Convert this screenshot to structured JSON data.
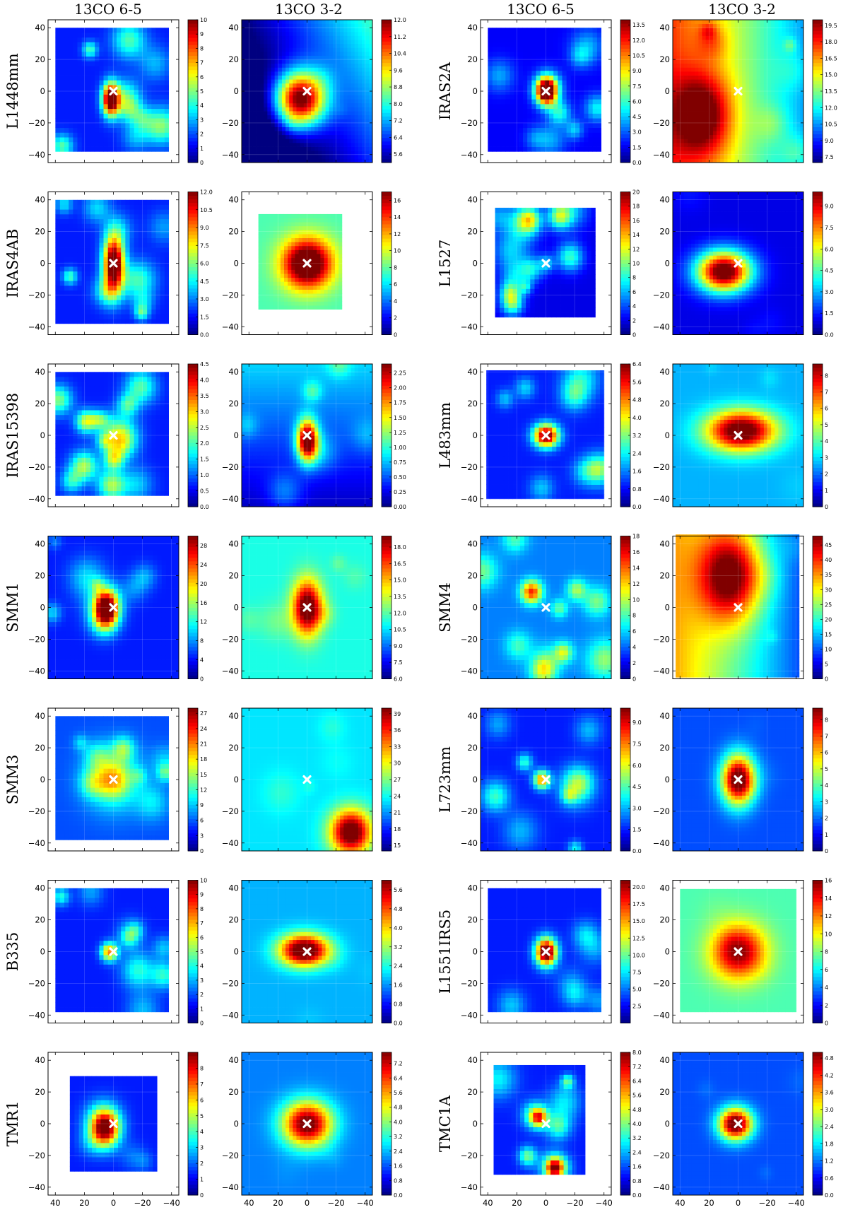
{
  "column_titles": [
    "13CO 6-5",
    "13CO 3-2",
    "13CO 6-5",
    "13CO 3-2"
  ],
  "axis_ticks": [
    "40",
    "20",
    "0",
    "−20",
    "−40"
  ],
  "chart_data": {
    "type": "heatmap",
    "colormap": "jet",
    "marker": "white x at offset (0,0)",
    "grid": true,
    "xlim": [
      45,
      -45
    ],
    "ylim": [
      -45,
      45
    ],
    "xticks": [
      40,
      20,
      0,
      -20,
      -40
    ],
    "yticks": [
      -40,
      -20,
      0,
      20,
      40
    ],
    "panels": [
      {
        "source": "L1448mm",
        "line": "13CO 6-5",
        "ext": [
          38,
          -38,
          -38,
          38
        ],
        "peak": [
          2,
          -5
        ],
        "s": [
          4,
          7
        ],
        "amp": 1.0,
        "bg": 0.15,
        "noise": 0.6,
        "seed": 11,
        "scale": [
          0,
          10
        ],
        "cb": [
          "0",
          "1",
          "2",
          "3",
          "4",
          "5",
          "6",
          "7",
          "8",
          "9",
          "10"
        ]
      },
      {
        "source": "L1448mm",
        "line": "13CO 3-2",
        "ext": [
          45,
          -45,
          -45,
          45
        ],
        "peak": [
          5,
          -5
        ],
        "s": [
          12,
          12
        ],
        "amp": 1.0,
        "bg": 0.08,
        "trend": [
          -0.005,
          0.003
        ],
        "noise": 0.1,
        "seed": 12,
        "scale": [
          5.2,
          12
        ],
        "cb": [
          "5.6",
          "6.4",
          "7.2",
          "8.0",
          "8.8",
          "9.6",
          "10.4",
          "11.2",
          "12.0"
        ]
      },
      {
        "source": "IRAS2A",
        "line": "13CO 6-5",
        "ext": [
          38,
          -38,
          -38,
          38
        ],
        "peak": [
          0,
          0
        ],
        "s": [
          5,
          6
        ],
        "amp": 1.0,
        "bg": 0.12,
        "noise": 0.5,
        "seed": 21,
        "scale": [
          0,
          14
        ],
        "cb": [
          "0.0",
          "1.5",
          "3.0",
          "4.5",
          "6.0",
          "7.5",
          "9.0",
          "10.5",
          "12.0",
          "13.5"
        ]
      },
      {
        "source": "IRAS2A",
        "line": "13CO 3-2",
        "ext": [
          45,
          -45,
          -45,
          45
        ],
        "peak": [
          25,
          -15
        ],
        "s": [
          14,
          18
        ],
        "amp": 0.45,
        "bg": 0.55,
        "trend": [
          0.006,
          0.0
        ],
        "noise": 0.25,
        "seed": 22,
        "scale": [
          7,
          20
        ],
        "cb": [
          "7.5",
          "9.0",
          "10.5",
          "12.0",
          "13.5",
          "15.0",
          "16.5",
          "18.0",
          "19.5"
        ]
      },
      {
        "source": "IRAS4AB",
        "line": "13CO 6-5",
        "ext": [
          38,
          -38,
          -38,
          38
        ],
        "peak": [
          0,
          0
        ],
        "s": [
          5,
          12
        ],
        "amp": 1.0,
        "bg": 0.15,
        "noise": 0.5,
        "seed": 31,
        "scale": [
          0,
          12
        ],
        "cb": [
          "0.0",
          "1.5",
          "3.0",
          "4.5",
          "6.0",
          "7.5",
          "9.0",
          "10.5",
          "12.0"
        ]
      },
      {
        "source": "IRAS4AB",
        "line": "13CO 3-2",
        "ext": [
          33,
          -24,
          -29,
          31
        ],
        "peak": [
          0,
          0
        ],
        "s": [
          12,
          11
        ],
        "amp": 0.75,
        "bg": 0.45,
        "noise": 0.0,
        "seed": 32,
        "scale": [
          0,
          17
        ],
        "cb": [
          "0",
          "2",
          "4",
          "6",
          "8",
          "10",
          "12",
          "14",
          "16"
        ]
      },
      {
        "source": "L1527",
        "line": "13CO 6-5",
        "ext": [
          34,
          -34,
          -34,
          34
        ],
        "peak": [
          0,
          0
        ],
        "s": [
          4,
          4
        ],
        "amp": 0.2,
        "bg": 0.1,
        "noise": 0.7,
        "seed": 41,
        "scale": [
          0,
          20
        ],
        "cb": [
          "0",
          "2",
          "4",
          "6",
          "8",
          "10",
          "12",
          "14",
          "16",
          "18",
          "20"
        ]
      },
      {
        "source": "L1527",
        "line": "13CO 3-2",
        "ext": [
          45,
          -45,
          -45,
          45
        ],
        "peak": [
          10,
          -5
        ],
        "s": [
          13,
          9
        ],
        "amp": 1.0,
        "bg": 0.1,
        "noise": 0.1,
        "seed": 42,
        "scale": [
          0,
          10
        ],
        "cb": [
          "0.0",
          "1.5",
          "3.0",
          "4.5",
          "6.0",
          "7.5",
          "9.0"
        ]
      },
      {
        "source": "IRAS15398",
        "line": "13CO 6-5",
        "ext": [
          38,
          -38,
          -38,
          38
        ],
        "peak": [
          10,
          10
        ],
        "s": [
          5,
          4
        ],
        "amp": 0.3,
        "bg": 0.15,
        "noise": 0.7,
        "seed": 51,
        "scale": [
          0,
          4.5
        ],
        "cb": [
          "0.0",
          "0.5",
          "1.0",
          "1.5",
          "2.0",
          "2.5",
          "3.0",
          "3.5",
          "4.0",
          "4.5"
        ]
      },
      {
        "source": "IRAS15398",
        "line": "13CO 3-2",
        "ext": [
          45,
          -45,
          -45,
          45
        ],
        "peak": [
          0,
          -3
        ],
        "s": [
          5,
          9
        ],
        "amp": 0.9,
        "bg": 0.2,
        "trend": [
          0.0,
          0.003
        ],
        "noise": 0.3,
        "seed": 52,
        "scale": [
          0,
          2.4
        ],
        "cb": [
          "0.00",
          "0.25",
          "0.50",
          "0.75",
          "1.00",
          "1.25",
          "1.50",
          "1.75",
          "2.00",
          "2.25"
        ]
      },
      {
        "source": "L483mm",
        "line": "13CO 6-5",
        "ext": [
          40,
          -40,
          -40,
          40
        ],
        "peak": [
          0,
          0
        ],
        "s": [
          6,
          5
        ],
        "amp": 0.9,
        "bg": 0.15,
        "noise": 0.4,
        "seed": 61,
        "scale": [
          0,
          6.4
        ],
        "cb": [
          "0.0",
          "0.8",
          "1.6",
          "2.4",
          "3.2",
          "4.0",
          "4.8",
          "5.6",
          "6.4"
        ]
      },
      {
        "source": "L483mm",
        "line": "13CO 3-2",
        "ext": [
          45,
          -45,
          -45,
          45
        ],
        "peak": [
          -2,
          3
        ],
        "s": [
          17,
          9
        ],
        "amp": 0.8,
        "bg": 0.3,
        "noise": 0.08,
        "seed": 62,
        "scale": [
          0,
          8.7
        ],
        "cb": [
          "0",
          "1",
          "2",
          "3",
          "4",
          "5",
          "6",
          "7",
          "8"
        ]
      },
      {
        "source": "SMM1",
        "line": "13CO 6-5",
        "ext": [
          45,
          -45,
          -45,
          45
        ],
        "peak": [
          5,
          0
        ],
        "s": [
          6,
          8
        ],
        "amp": 0.9,
        "bg": 0.15,
        "noise": 0.4,
        "seed": 71,
        "scale": [
          0,
          30
        ],
        "cb": [
          "0",
          "4",
          "8",
          "12",
          "16",
          "20",
          "24",
          "28"
        ]
      },
      {
        "source": "SMM1",
        "line": "13CO 3-2",
        "ext": [
          45,
          -45,
          -45,
          45
        ],
        "peak": [
          0,
          0
        ],
        "s": [
          7,
          12
        ],
        "amp": 0.7,
        "bg": 0.4,
        "noise": 0.2,
        "seed": 72,
        "scale": [
          6,
          19
        ],
        "cb": [
          "6.0",
          "7.5",
          "9.0",
          "10.5",
          "12.0",
          "13.5",
          "15.0",
          "16.5",
          "18.0"
        ]
      },
      {
        "source": "SMM4",
        "line": "13CO 6-5",
        "ext": [
          45,
          -45,
          -45,
          45
        ],
        "peak": [
          10,
          10
        ],
        "s": [
          5,
          5
        ],
        "amp": 0.6,
        "bg": 0.25,
        "noise": 0.6,
        "seed": 81,
        "scale": [
          0,
          18
        ],
        "cb": [
          "0",
          "2",
          "4",
          "6",
          "8",
          "10",
          "12",
          "14",
          "16",
          "18"
        ]
      },
      {
        "source": "SMM4",
        "line": "13CO 3-2",
        "ext": [
          42,
          -42,
          -44,
          44
        ],
        "peak": [
          5,
          20
        ],
        "s": [
          15,
          20
        ],
        "amp": 0.6,
        "bg": 0.45,
        "trend": [
          0.006,
          0.0
        ],
        "noise": 0.1,
        "seed": 82,
        "scale": [
          0,
          48
        ],
        "cb": [
          "0",
          "5",
          "10",
          "15",
          "20",
          "25",
          "30",
          "35",
          "40",
          "45"
        ]
      },
      {
        "source": "SMM3",
        "line": "13CO 6-5",
        "ext": [
          38,
          -38,
          -38,
          38
        ],
        "peak": [
          0,
          0
        ],
        "s": [
          14,
          14
        ],
        "amp": 0.25,
        "bg": 0.2,
        "noise": 0.5,
        "seed": 91,
        "scale": [
          0,
          28
        ],
        "cb": [
          "0",
          "3",
          "6",
          "9",
          "12",
          "15",
          "18",
          "21",
          "24",
          "27"
        ]
      },
      {
        "source": "SMM3",
        "line": "13CO 3-2",
        "ext": [
          45,
          -45,
          -45,
          45
        ],
        "peak": [
          -30,
          -33
        ],
        "s": [
          10,
          10
        ],
        "amp": 0.75,
        "bg": 0.35,
        "noise": 0.12,
        "seed": 92,
        "scale": [
          14,
          40
        ],
        "cb": [
          "15",
          "18",
          "21",
          "24",
          "27",
          "30",
          "33",
          "36",
          "39"
        ]
      },
      {
        "source": "L723mm",
        "line": "13CO 6-5",
        "ext": [
          45,
          -45,
          -45,
          45
        ],
        "peak": [
          3,
          0
        ],
        "s": [
          4,
          4
        ],
        "amp": 0.6,
        "bg": 0.15,
        "noise": 0.5,
        "seed": 101,
        "scale": [
          0,
          10
        ],
        "cb": [
          "0.0",
          "1.5",
          "3.0",
          "4.5",
          "6.0",
          "7.5",
          "9.0"
        ]
      },
      {
        "source": "L723mm",
        "line": "13CO 3-2",
        "ext": [
          45,
          -45,
          -45,
          45
        ],
        "peak": [
          0,
          0
        ],
        "s": [
          8,
          11
        ],
        "amp": 0.9,
        "bg": 0.2,
        "noise": 0.05,
        "seed": 102,
        "scale": [
          0,
          8.7
        ],
        "cb": [
          "0",
          "1",
          "2",
          "3",
          "4",
          "5",
          "6",
          "7",
          "8"
        ]
      },
      {
        "source": "B335",
        "line": "13CO 6-5",
        "ext": [
          38,
          -38,
          -38,
          38
        ],
        "peak": [
          3,
          0
        ],
        "s": [
          4,
          4
        ],
        "amp": 0.6,
        "bg": 0.15,
        "noise": 0.5,
        "seed": 111,
        "scale": [
          0,
          10
        ],
        "cb": [
          "0",
          "1",
          "2",
          "3",
          "4",
          "5",
          "6",
          "7",
          "8",
          "9",
          "10"
        ]
      },
      {
        "source": "B335",
        "line": "13CO 3-2",
        "ext": [
          45,
          -45,
          -45,
          45
        ],
        "peak": [
          2,
          1
        ],
        "s": [
          12,
          7
        ],
        "amp": 0.85,
        "bg": 0.3,
        "noise": 0.05,
        "seed": 112,
        "scale": [
          0,
          6
        ],
        "cb": [
          "0.0",
          "0.8",
          "1.6",
          "2.4",
          "3.2",
          "4.0",
          "4.8",
          "5.6"
        ]
      },
      {
        "source": "L1551IRS5",
        "line": "13CO 6-5",
        "ext": [
          38,
          -38,
          -38,
          38
        ],
        "peak": [
          0,
          0
        ],
        "s": [
          5,
          6
        ],
        "amp": 1.0,
        "bg": 0.15,
        "noise": 0.3,
        "seed": 121,
        "scale": [
          0,
          21
        ],
        "cb": [
          "2.5",
          "5.0",
          "7.5",
          "10.0",
          "12.5",
          "15.0",
          "17.5",
          "20.0"
        ]
      },
      {
        "source": "L1551IRS5",
        "line": "13CO 3-2",
        "ext": [
          40,
          -40,
          -38,
          38
        ],
        "peak": [
          0,
          0
        ],
        "s": [
          13,
          12
        ],
        "amp": 0.55,
        "bg": 0.45,
        "noise": 0.05,
        "seed": 122,
        "scale": [
          0,
          16
        ],
        "cb": [
          "0",
          "2",
          "4",
          "6",
          "8",
          "10",
          "12",
          "14",
          "16"
        ]
      },
      {
        "source": "TMR1",
        "line": "13CO 6-5",
        "ext": [
          30,
          -30,
          -30,
          30
        ],
        "peak": [
          6,
          -3
        ],
        "s": [
          7,
          8
        ],
        "amp": 0.85,
        "bg": 0.15,
        "noise": 0.2,
        "seed": 131,
        "scale": [
          0,
          9
        ],
        "cb": [
          "0",
          "1",
          "2",
          "3",
          "4",
          "5",
          "6",
          "7",
          "8"
        ]
      },
      {
        "source": "TMR1",
        "line": "13CO 3-2",
        "ext": [
          45,
          -45,
          -45,
          45
        ],
        "peak": [
          0,
          0
        ],
        "s": [
          12,
          10
        ],
        "amp": 0.8,
        "bg": 0.25,
        "noise": 0.05,
        "seed": 132,
        "scale": [
          0,
          7.8
        ],
        "cb": [
          "0.0",
          "0.8",
          "1.6",
          "2.4",
          "3.2",
          "4.0",
          "4.8",
          "5.6",
          "6.4",
          "7.2"
        ]
      },
      {
        "source": "TMC1A",
        "line": "13CO 6-5",
        "ext": [
          35,
          -27,
          -32,
          35
        ],
        "peak": [
          5,
          4
        ],
        "s": [
          4,
          4
        ],
        "amp": 0.5,
        "bg": 0.15,
        "noise": 0.6,
        "seed": 141,
        "scale": [
          0,
          8
        ],
        "cb": [
          "0.0",
          "0.8",
          "1.6",
          "2.4",
          "3.2",
          "4.0",
          "4.8",
          "5.6",
          "6.4",
          "7.2",
          "8.0"
        ]
      },
      {
        "source": "TMC1A",
        "line": "13CO 3-2",
        "ext": [
          45,
          -45,
          -45,
          45
        ],
        "peak": [
          2,
          0
        ],
        "s": [
          8,
          7
        ],
        "amp": 0.9,
        "bg": 0.2,
        "noise": 0.05,
        "seed": 142,
        "scale": [
          0,
          5
        ],
        "cb": [
          "0.0",
          "0.6",
          "1.2",
          "1.8",
          "2.4",
          "3.0",
          "3.6",
          "4.2",
          "4.8"
        ]
      }
    ]
  }
}
